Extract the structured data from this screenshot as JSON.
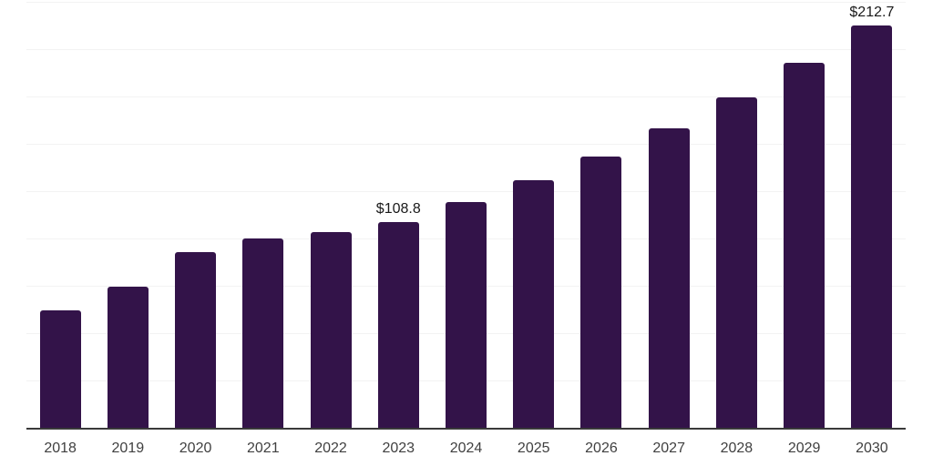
{
  "chart_data": {
    "type": "bar",
    "title": "",
    "xlabel": "",
    "ylabel": "",
    "categories": [
      "2018",
      "2019",
      "2020",
      "2021",
      "2022",
      "2023",
      "2024",
      "2025",
      "2026",
      "2027",
      "2028",
      "2029",
      "2030"
    ],
    "values": [
      61.9,
      74.3,
      92.8,
      99.8,
      103.3,
      108.8,
      119.2,
      130.8,
      143.5,
      158.2,
      174.3,
      192.8,
      212.7
    ],
    "data_labels": [
      {
        "category": "2023",
        "text": "$108.8"
      },
      {
        "category": "2030",
        "text": "$212.7"
      }
    ],
    "ylim": [
      0,
      225
    ],
    "gridline_step": 25,
    "grid": "horizontal",
    "legend": "none",
    "y_tick_labels": [],
    "colors": {
      "bar": "#331349",
      "gridline": "#f3f3f3",
      "axis_line": "#3a3a3a",
      "tick_label": "#404040",
      "data_label": "#1a1a1a",
      "background": "#ffffff"
    }
  }
}
